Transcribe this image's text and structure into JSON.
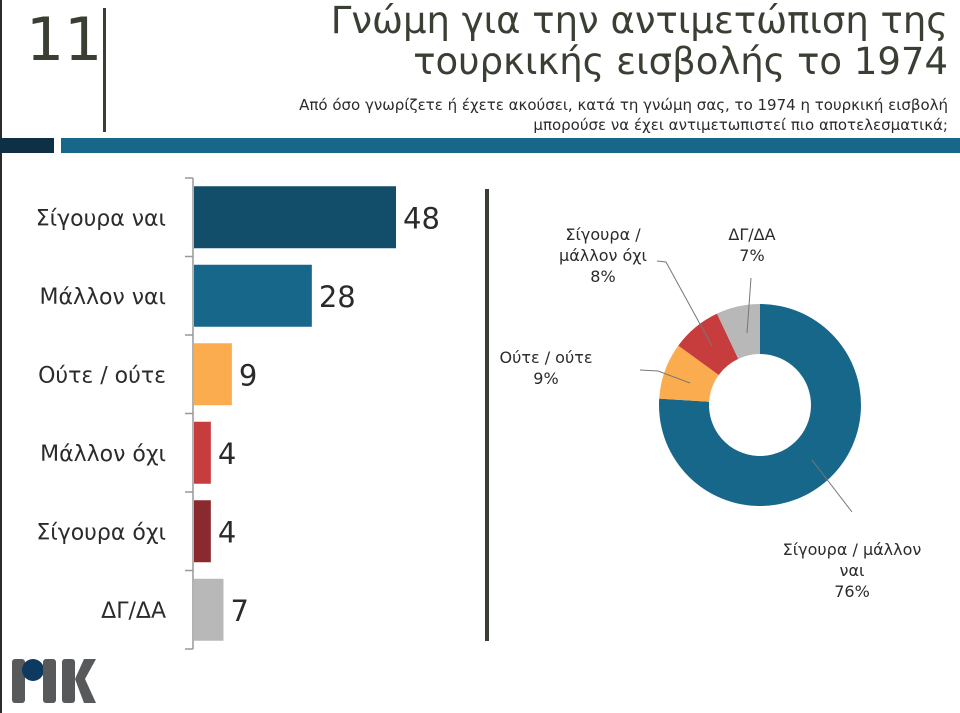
{
  "header": {
    "slide_number": "11",
    "title_line1": "Γνώμη για την αντιμετώπιση της",
    "title_line2": "τουρκικής εισβολής το 1974",
    "subtitle_line1": "Από όσο γνωρίζετε ή έχετε ακούσει, κατά τη γνώμη σας, το 1974 η τουρκική εισβολή",
    "subtitle_line2": "μπορούσε να έχει αντιμετωπιστεί πιο αποτελεσματικά;"
  },
  "logo": {
    "text": "RIK",
    "dot_color": "#0f3a5f",
    "letter_color": "#58595b"
  },
  "colors": {
    "accent_dark": "#0f2f44",
    "accent": "#17678b"
  },
  "chart_data": [
    {
      "type": "bar",
      "orientation": "horizontal",
      "categories": [
        "Σίγουρα ναι",
        "Μάλλον ναι",
        "Ούτε / ούτε",
        "Μάλλον όχι",
        "Σίγουρα όχι",
        "ΔΓ/ΔΑ"
      ],
      "values": [
        48,
        28,
        9,
        4,
        4,
        7
      ],
      "data_labels": [
        "48",
        "28",
        "9",
        "4",
        "4",
        "7"
      ],
      "colors": [
        "#124e6a",
        "#17678b",
        "#fbac4e",
        "#c73d3d",
        "#8b2a2e",
        "#b8b8b8"
      ],
      "xlim": [
        0,
        50
      ],
      "grid": false,
      "title": "",
      "xlabel": "",
      "ylabel": ""
    },
    {
      "type": "pie",
      "donut": true,
      "categories": [
        "Σίγουρα / μάλλον ναι",
        "Ούτε / ούτε",
        "Σίγουρα / μάλλον όχι",
        "ΔΓ/ΔΑ"
      ],
      "label_lines": [
        [
          "Σίγουρα / μάλλον",
          "ναι"
        ],
        [
          "Ούτε / ούτε"
        ],
        [
          "Σίγουρα /",
          "μάλλον όχι"
        ],
        [
          "ΔΓ/ΔΑ"
        ]
      ],
      "values": [
        76,
        9,
        8,
        7
      ],
      "data_labels": [
        "76%",
        "9%",
        "8%",
        "7%"
      ],
      "colors": [
        "#17678b",
        "#fbac4e",
        "#c73d3d",
        "#b8b8b8"
      ],
      "start": "top",
      "direction": "clockwise"
    }
  ]
}
